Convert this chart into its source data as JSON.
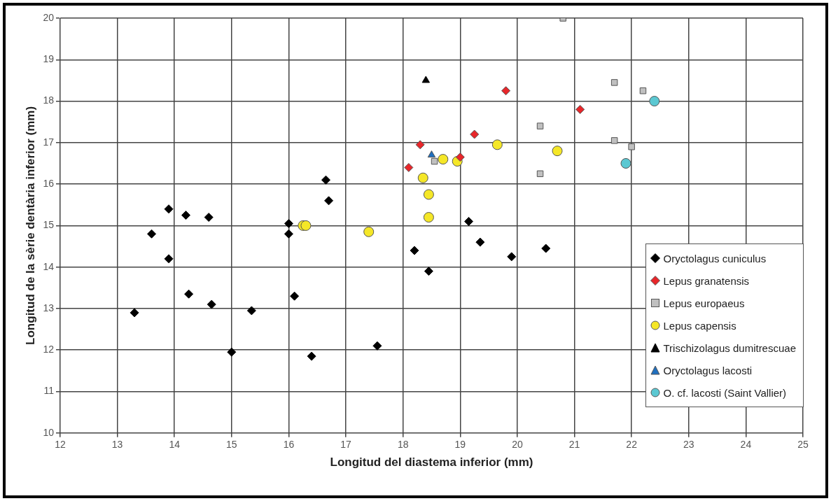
{
  "chart_data": {
    "type": "scatter",
    "xlabel": "Longitud del diastema inferior (mm)",
    "ylabel": "Longitud de la sèrie dentària inferior (mm)",
    "xlim": [
      12,
      25
    ],
    "xticks": [
      12,
      13,
      14,
      15,
      16,
      17,
      18,
      19,
      20,
      21,
      22,
      23,
      24,
      25
    ],
    "ylim": [
      10,
      20
    ],
    "yticks": [
      10,
      11,
      12,
      13,
      14,
      15,
      16,
      17,
      18,
      19,
      20
    ],
    "grid": true,
    "legend": "bottom right",
    "series": [
      {
        "name": "Oryctolagus cuniculus",
        "color": "#000000",
        "marker": "diamond",
        "x": [
          13.3,
          13.6,
          13.9,
          13.9,
          14.2,
          14.25,
          14.6,
          14.65,
          15.35,
          15.0,
          16.0,
          16.0,
          16.1,
          16.65,
          16.7,
          16.4,
          17.55,
          18.2,
          18.45,
          19.15,
          19.35,
          19.9,
          20.5
        ],
        "values": [
          12.9,
          14.8,
          15.4,
          14.2,
          15.25,
          13.35,
          15.2,
          13.1,
          12.95,
          11.95,
          15.05,
          14.8,
          13.3,
          16.1,
          15.6,
          11.85,
          12.1,
          14.4,
          13.9,
          15.1,
          14.6,
          14.25,
          14.45
        ]
      },
      {
        "name": "Lepus granatensis",
        "color": "#e8262a",
        "marker": "diamond",
        "x": [
          18.1,
          18.3,
          19.25,
          19.0,
          19.8,
          21.1
        ],
        "values": [
          16.4,
          16.95,
          17.2,
          16.65,
          18.25,
          17.8
        ]
      },
      {
        "name": "Lepus europaeus",
        "color": "#c0c0c0",
        "marker": "square",
        "x": [
          20.8,
          20.4,
          20.4,
          21.7,
          21.7,
          22.2,
          22.0,
          18.55
        ],
        "values": [
          20.0,
          17.4,
          16.25,
          18.45,
          17.05,
          18.25,
          16.9,
          16.55
        ]
      },
      {
        "name": "Lepus capensis",
        "color": "#f5e727",
        "marker": "circle",
        "x": [
          16.25,
          16.3,
          17.4,
          18.35,
          18.45,
          18.45,
          18.7,
          18.95,
          19.65,
          20.7
        ],
        "values": [
          15.0,
          15.0,
          14.85,
          16.15,
          15.75,
          15.2,
          16.6,
          16.55,
          16.95,
          16.8
        ]
      },
      {
        "name": "Trischizolagus dumitrescuae",
        "color": "#000000",
        "marker": "triangle",
        "x": [
          18.4
        ],
        "values": [
          18.5
        ]
      },
      {
        "name": "Oryctolagus lacosti",
        "color": "#1f6fbf",
        "marker": "triangle",
        "x": [
          18.5
        ],
        "values": [
          16.7
        ]
      },
      {
        "name": "O. cf. lacosti (Saint Vallier)",
        "color": "#5bc8d2",
        "marker": "circle",
        "x": [
          22.4,
          21.9
        ],
        "values": [
          18.0,
          16.5
        ]
      }
    ]
  }
}
